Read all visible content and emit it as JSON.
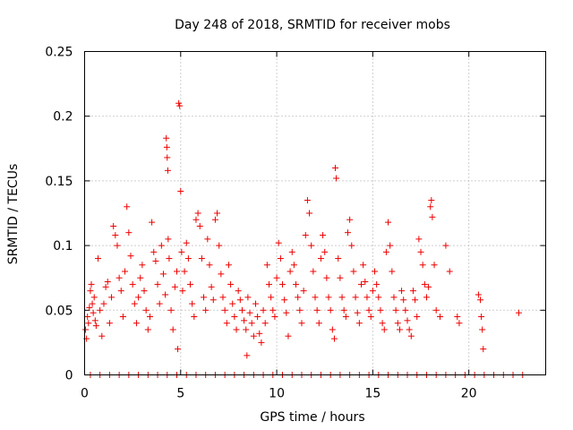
{
  "chart_data": {
    "type": "scatter",
    "title": "Day 248 of 2018, SRMTID for receiver mobs",
    "xlabel": "GPS time / hours",
    "ylabel": "SRMTID / TECUs",
    "xlim": [
      0,
      24
    ],
    "ylim": [
      0,
      0.25
    ],
    "xticks": [
      0,
      5,
      10,
      15,
      20
    ],
    "xtick_labels": [
      "0",
      "5",
      "10",
      "15",
      "20"
    ],
    "yticks": [
      0,
      0.05,
      0.1,
      0.15,
      0.2,
      0.25
    ],
    "ytick_labels": [
      "0",
      "0.05",
      "0.1",
      "0.15",
      "0.2",
      "0.25"
    ],
    "grid": true,
    "marker": "+",
    "color": "#ee0000",
    "series": [
      {
        "name": "SRMTID",
        "points": [
          [
            0.05,
            0.035
          ],
          [
            0.1,
            0.028
          ],
          [
            0.15,
            0.045
          ],
          [
            0.2,
            0.04
          ],
          [
            0.25,
            0.052
          ],
          [
            0.3,
            0.065
          ],
          [
            0.35,
            0.07
          ],
          [
            0.4,
            0.055
          ],
          [
            0.45,
            0.048
          ],
          [
            0.5,
            0.06
          ],
          [
            0.55,
            0.042
          ],
          [
            0.6,
            0.038
          ],
          [
            0.7,
            0.09
          ],
          [
            0.8,
            0.05
          ],
          [
            0.9,
            0.03
          ],
          [
            1.0,
            0.055
          ],
          [
            1.1,
            0.068
          ],
          [
            1.2,
            0.072
          ],
          [
            1.3,
            0.04
          ],
          [
            1.4,
            0.06
          ],
          [
            1.5,
            0.115
          ],
          [
            1.6,
            0.108
          ],
          [
            1.7,
            0.1
          ],
          [
            1.8,
            0.075
          ],
          [
            1.9,
            0.065
          ],
          [
            2.0,
            0.045
          ],
          [
            2.1,
            0.08
          ],
          [
            2.2,
            0.13
          ],
          [
            2.3,
            0.11
          ],
          [
            2.4,
            0.092
          ],
          [
            2.5,
            0.07
          ],
          [
            2.6,
            0.055
          ],
          [
            2.7,
            0.04
          ],
          [
            2.8,
            0.06
          ],
          [
            2.9,
            0.075
          ],
          [
            3.0,
            0.085
          ],
          [
            3.1,
            0.065
          ],
          [
            3.2,
            0.05
          ],
          [
            3.3,
            0.035
          ],
          [
            3.4,
            0.045
          ],
          [
            3.5,
            0.118
          ],
          [
            3.6,
            0.095
          ],
          [
            3.7,
            0.088
          ],
          [
            3.8,
            0.07
          ],
          [
            3.9,
            0.055
          ],
          [
            4.0,
            0.1
          ],
          [
            4.1,
            0.078
          ],
          [
            4.2,
            0.062
          ],
          [
            4.25,
            0.183
          ],
          [
            4.28,
            0.176
          ],
          [
            4.3,
            0.168
          ],
          [
            4.33,
            0.158
          ],
          [
            4.35,
            0.105
          ],
          [
            4.4,
            0.09
          ],
          [
            4.5,
            0.05
          ],
          [
            4.6,
            0.035
          ],
          [
            4.7,
            0.068
          ],
          [
            4.8,
            0.08
          ],
          [
            4.85,
            0.02
          ],
          [
            4.9,
            0.21
          ],
          [
            4.95,
            0.208
          ],
          [
            5.0,
            0.142
          ],
          [
            5.05,
            0.095
          ],
          [
            5.1,
            0.065
          ],
          [
            5.2,
            0.08
          ],
          [
            5.3,
            0.102
          ],
          [
            5.4,
            0.09
          ],
          [
            5.5,
            0.07
          ],
          [
            5.6,
            0.055
          ],
          [
            5.7,
            0.045
          ],
          [
            5.8,
            0.12
          ],
          [
            5.9,
            0.125
          ],
          [
            6.0,
            0.115
          ],
          [
            6.1,
            0.09
          ],
          [
            6.2,
            0.06
          ],
          [
            6.3,
            0.05
          ],
          [
            6.4,
            0.105
          ],
          [
            6.5,
            0.085
          ],
          [
            6.6,
            0.068
          ],
          [
            6.7,
            0.058
          ],
          [
            6.8,
            0.12
          ],
          [
            6.9,
            0.125
          ],
          [
            7.0,
            0.1
          ],
          [
            7.1,
            0.078
          ],
          [
            7.2,
            0.06
          ],
          [
            7.3,
            0.05
          ],
          [
            7.4,
            0.04
          ],
          [
            7.5,
            0.085
          ],
          [
            7.6,
            0.07
          ],
          [
            7.7,
            0.055
          ],
          [
            7.8,
            0.045
          ],
          [
            7.9,
            0.035
          ],
          [
            8.0,
            0.065
          ],
          [
            8.1,
            0.058
          ],
          [
            8.2,
            0.05
          ],
          [
            8.3,
            0.042
          ],
          [
            8.4,
            0.035
          ],
          [
            8.45,
            0.015
          ],
          [
            8.5,
            0.06
          ],
          [
            8.6,
            0.048
          ],
          [
            8.7,
            0.04
          ],
          [
            8.8,
            0.03
          ],
          [
            8.9,
            0.055
          ],
          [
            9.0,
            0.045
          ],
          [
            9.1,
            0.032
          ],
          [
            9.2,
            0.025
          ],
          [
            9.3,
            0.05
          ],
          [
            9.4,
            0.04
          ],
          [
            9.5,
            0.085
          ],
          [
            9.6,
            0.07
          ],
          [
            9.7,
            0.06
          ],
          [
            9.8,
            0.05
          ],
          [
            9.9,
            0.045
          ],
          [
            10.0,
            0.075
          ],
          [
            10.1,
            0.102
          ],
          [
            10.2,
            0.09
          ],
          [
            10.3,
            0.07
          ],
          [
            10.4,
            0.058
          ],
          [
            10.5,
            0.048
          ],
          [
            10.6,
            0.03
          ],
          [
            10.7,
            0.08
          ],
          [
            10.8,
            0.095
          ],
          [
            10.9,
            0.085
          ],
          [
            11.0,
            0.07
          ],
          [
            11.1,
            0.06
          ],
          [
            11.2,
            0.05
          ],
          [
            11.3,
            0.04
          ],
          [
            11.4,
            0.065
          ],
          [
            11.5,
            0.108
          ],
          [
            11.6,
            0.135
          ],
          [
            11.7,
            0.125
          ],
          [
            11.8,
            0.1
          ],
          [
            11.9,
            0.08
          ],
          [
            12.0,
            0.06
          ],
          [
            12.1,
            0.05
          ],
          [
            12.2,
            0.04
          ],
          [
            12.3,
            0.09
          ],
          [
            12.4,
            0.108
          ],
          [
            12.5,
            0.095
          ],
          [
            12.6,
            0.075
          ],
          [
            12.7,
            0.06
          ],
          [
            12.8,
            0.05
          ],
          [
            12.9,
            0.035
          ],
          [
            13.0,
            0.028
          ],
          [
            13.05,
            0.16
          ],
          [
            13.1,
            0.152
          ],
          [
            13.2,
            0.09
          ],
          [
            13.3,
            0.075
          ],
          [
            13.4,
            0.06
          ],
          [
            13.5,
            0.05
          ],
          [
            13.6,
            0.045
          ],
          [
            13.7,
            0.11
          ],
          [
            13.8,
            0.12
          ],
          [
            13.9,
            0.1
          ],
          [
            14.0,
            0.08
          ],
          [
            14.1,
            0.06
          ],
          [
            14.2,
            0.048
          ],
          [
            14.3,
            0.04
          ],
          [
            14.4,
            0.07
          ],
          [
            14.5,
            0.085
          ],
          [
            14.6,
            0.072
          ],
          [
            14.7,
            0.06
          ],
          [
            14.8,
            0.05
          ],
          [
            14.9,
            0.045
          ],
          [
            15.0,
            0.065
          ],
          [
            15.1,
            0.08
          ],
          [
            15.2,
            0.07
          ],
          [
            15.3,
            0.06
          ],
          [
            15.4,
            0.05
          ],
          [
            15.5,
            0.04
          ],
          [
            15.6,
            0.035
          ],
          [
            15.7,
            0.095
          ],
          [
            15.8,
            0.118
          ],
          [
            15.9,
            0.1
          ],
          [
            16.0,
            0.08
          ],
          [
            16.1,
            0.06
          ],
          [
            16.2,
            0.05
          ],
          [
            16.3,
            0.04
          ],
          [
            16.4,
            0.035
          ],
          [
            16.5,
            0.065
          ],
          [
            16.6,
            0.058
          ],
          [
            16.7,
            0.05
          ],
          [
            16.8,
            0.042
          ],
          [
            16.9,
            0.035
          ],
          [
            17.0,
            0.03
          ],
          [
            17.1,
            0.065
          ],
          [
            17.2,
            0.058
          ],
          [
            17.3,
            0.045
          ],
          [
            17.4,
            0.105
          ],
          [
            17.5,
            0.095
          ],
          [
            17.6,
            0.085
          ],
          [
            17.7,
            0.07
          ],
          [
            17.8,
            0.06
          ],
          [
            17.9,
            0.068
          ],
          [
            18.0,
            0.13
          ],
          [
            18.05,
            0.135
          ],
          [
            18.1,
            0.122
          ],
          [
            18.2,
            0.085
          ],
          [
            18.3,
            0.05
          ],
          [
            18.5,
            0.045
          ],
          [
            18.8,
            0.1
          ],
          [
            19.0,
            0.08
          ],
          [
            19.4,
            0.045
          ],
          [
            19.5,
            0.04
          ],
          [
            20.5,
            0.062
          ],
          [
            20.6,
            0.058
          ],
          [
            20.65,
            0.045
          ],
          [
            20.7,
            0.035
          ],
          [
            20.75,
            0.02
          ],
          [
            22.6,
            0.048
          ],
          [
            0.3,
            0.0
          ],
          [
            0.8,
            0.0
          ],
          [
            1.3,
            0.0
          ],
          [
            1.8,
            0.0
          ],
          [
            2.3,
            0.0
          ],
          [
            2.8,
            0.0
          ],
          [
            3.3,
            0.0
          ],
          [
            3.8,
            0.0
          ],
          [
            4.3,
            0.0
          ],
          [
            4.8,
            0.0
          ],
          [
            5.3,
            0.0
          ],
          [
            5.8,
            0.0
          ],
          [
            6.3,
            0.0
          ],
          [
            6.8,
            0.0
          ],
          [
            7.3,
            0.0
          ],
          [
            7.8,
            0.0
          ],
          [
            8.3,
            0.0
          ],
          [
            8.8,
            0.0
          ],
          [
            9.3,
            0.0
          ],
          [
            9.8,
            0.0
          ],
          [
            10.3,
            0.0
          ],
          [
            10.8,
            0.0
          ],
          [
            11.3,
            0.0
          ],
          [
            11.8,
            0.0
          ],
          [
            12.3,
            0.0
          ],
          [
            12.8,
            0.0
          ],
          [
            13.3,
            0.0
          ],
          [
            13.8,
            0.0
          ],
          [
            14.3,
            0.0
          ],
          [
            14.8,
            0.0
          ],
          [
            15.3,
            0.0
          ],
          [
            15.8,
            0.0
          ],
          [
            16.3,
            0.0
          ],
          [
            16.8,
            0.0
          ],
          [
            17.3,
            0.0
          ],
          [
            17.8,
            0.0
          ],
          [
            18.3,
            0.0
          ],
          [
            18.8,
            0.0
          ],
          [
            19.3,
            0.0
          ],
          [
            19.8,
            0.0
          ],
          [
            20.3,
            0.0
          ],
          [
            20.8,
            0.0
          ],
          [
            21.3,
            0.0
          ],
          [
            21.8,
            0.0
          ],
          [
            22.3,
            0.0
          ],
          [
            22.8,
            0.0
          ]
        ]
      }
    ]
  }
}
